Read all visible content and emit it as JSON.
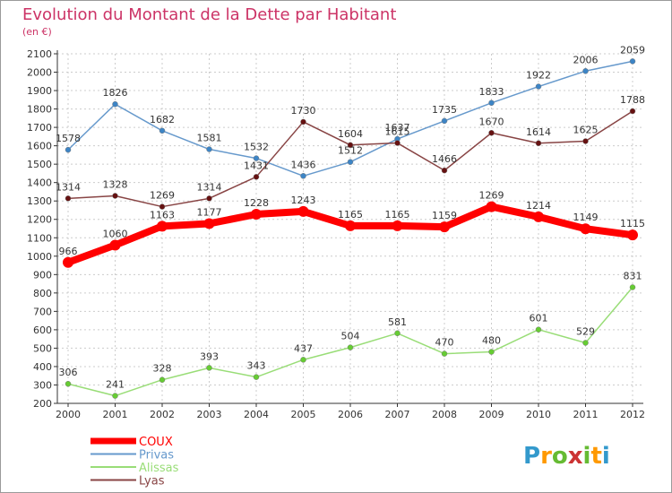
{
  "chart_data": {
    "type": "line",
    "title": "Evolution du Montant de la Dette par Habitant",
    "subtitle": "(en €)",
    "xlabel": "",
    "ylabel": "",
    "ylim": [
      200,
      2100
    ],
    "yticks": [
      "2100",
      "2000",
      "1900",
      "1800",
      "1700",
      "1600",
      "1500",
      "1400",
      "1300",
      "1200",
      "1100",
      "1000",
      "900",
      "800",
      "700",
      "600",
      "500",
      "400",
      "300",
      "200"
    ],
    "grid": true,
    "legend_position": "bottom-left",
    "categories": [
      "2000",
      "2001",
      "2002",
      "2003",
      "2004",
      "2005",
      "2006",
      "2007",
      "2008",
      "2009",
      "2010",
      "2011",
      "2012"
    ],
    "series": [
      {
        "name": "COUX",
        "color": "#ff0000",
        "values": [
          966,
          1060,
          1163,
          1177,
          1228,
          1243,
          1165,
          1165,
          1159,
          1269,
          1214,
          1149,
          1115
        ]
      },
      {
        "name": "Privas",
        "color": "#6699cc",
        "marker": "#3d85c6",
        "values": [
          1578,
          1826,
          1682,
          1581,
          1532,
          1436,
          1512,
          1637,
          1735,
          1833,
          1922,
          2006,
          2059
        ]
      },
      {
        "name": "Alissas",
        "color": "#99dd77",
        "marker": "#66cc33",
        "values": [
          306,
          241,
          328,
          393,
          343,
          437,
          504,
          581,
          470,
          480,
          601,
          529,
          831
        ]
      },
      {
        "name": "Lyas",
        "color": "#884444",
        "marker": "#661111",
        "values": [
          1314,
          1328,
          1269,
          1314,
          1431,
          1730,
          1604,
          1615,
          1466,
          1670,
          1614,
          1625,
          1788
        ]
      }
    ]
  },
  "colors": {
    "title": "#cc3366",
    "grid": "#cccccc",
    "axis": "#333333"
  },
  "logo": {
    "letters": [
      "P",
      "r",
      "o",
      "x",
      "i",
      "t",
      "i"
    ],
    "colors": [
      "#3399cc",
      "#ff9900",
      "#66bb33",
      "#cc3333",
      "#66bb33",
      "#ff9900",
      "#3399cc"
    ]
  }
}
